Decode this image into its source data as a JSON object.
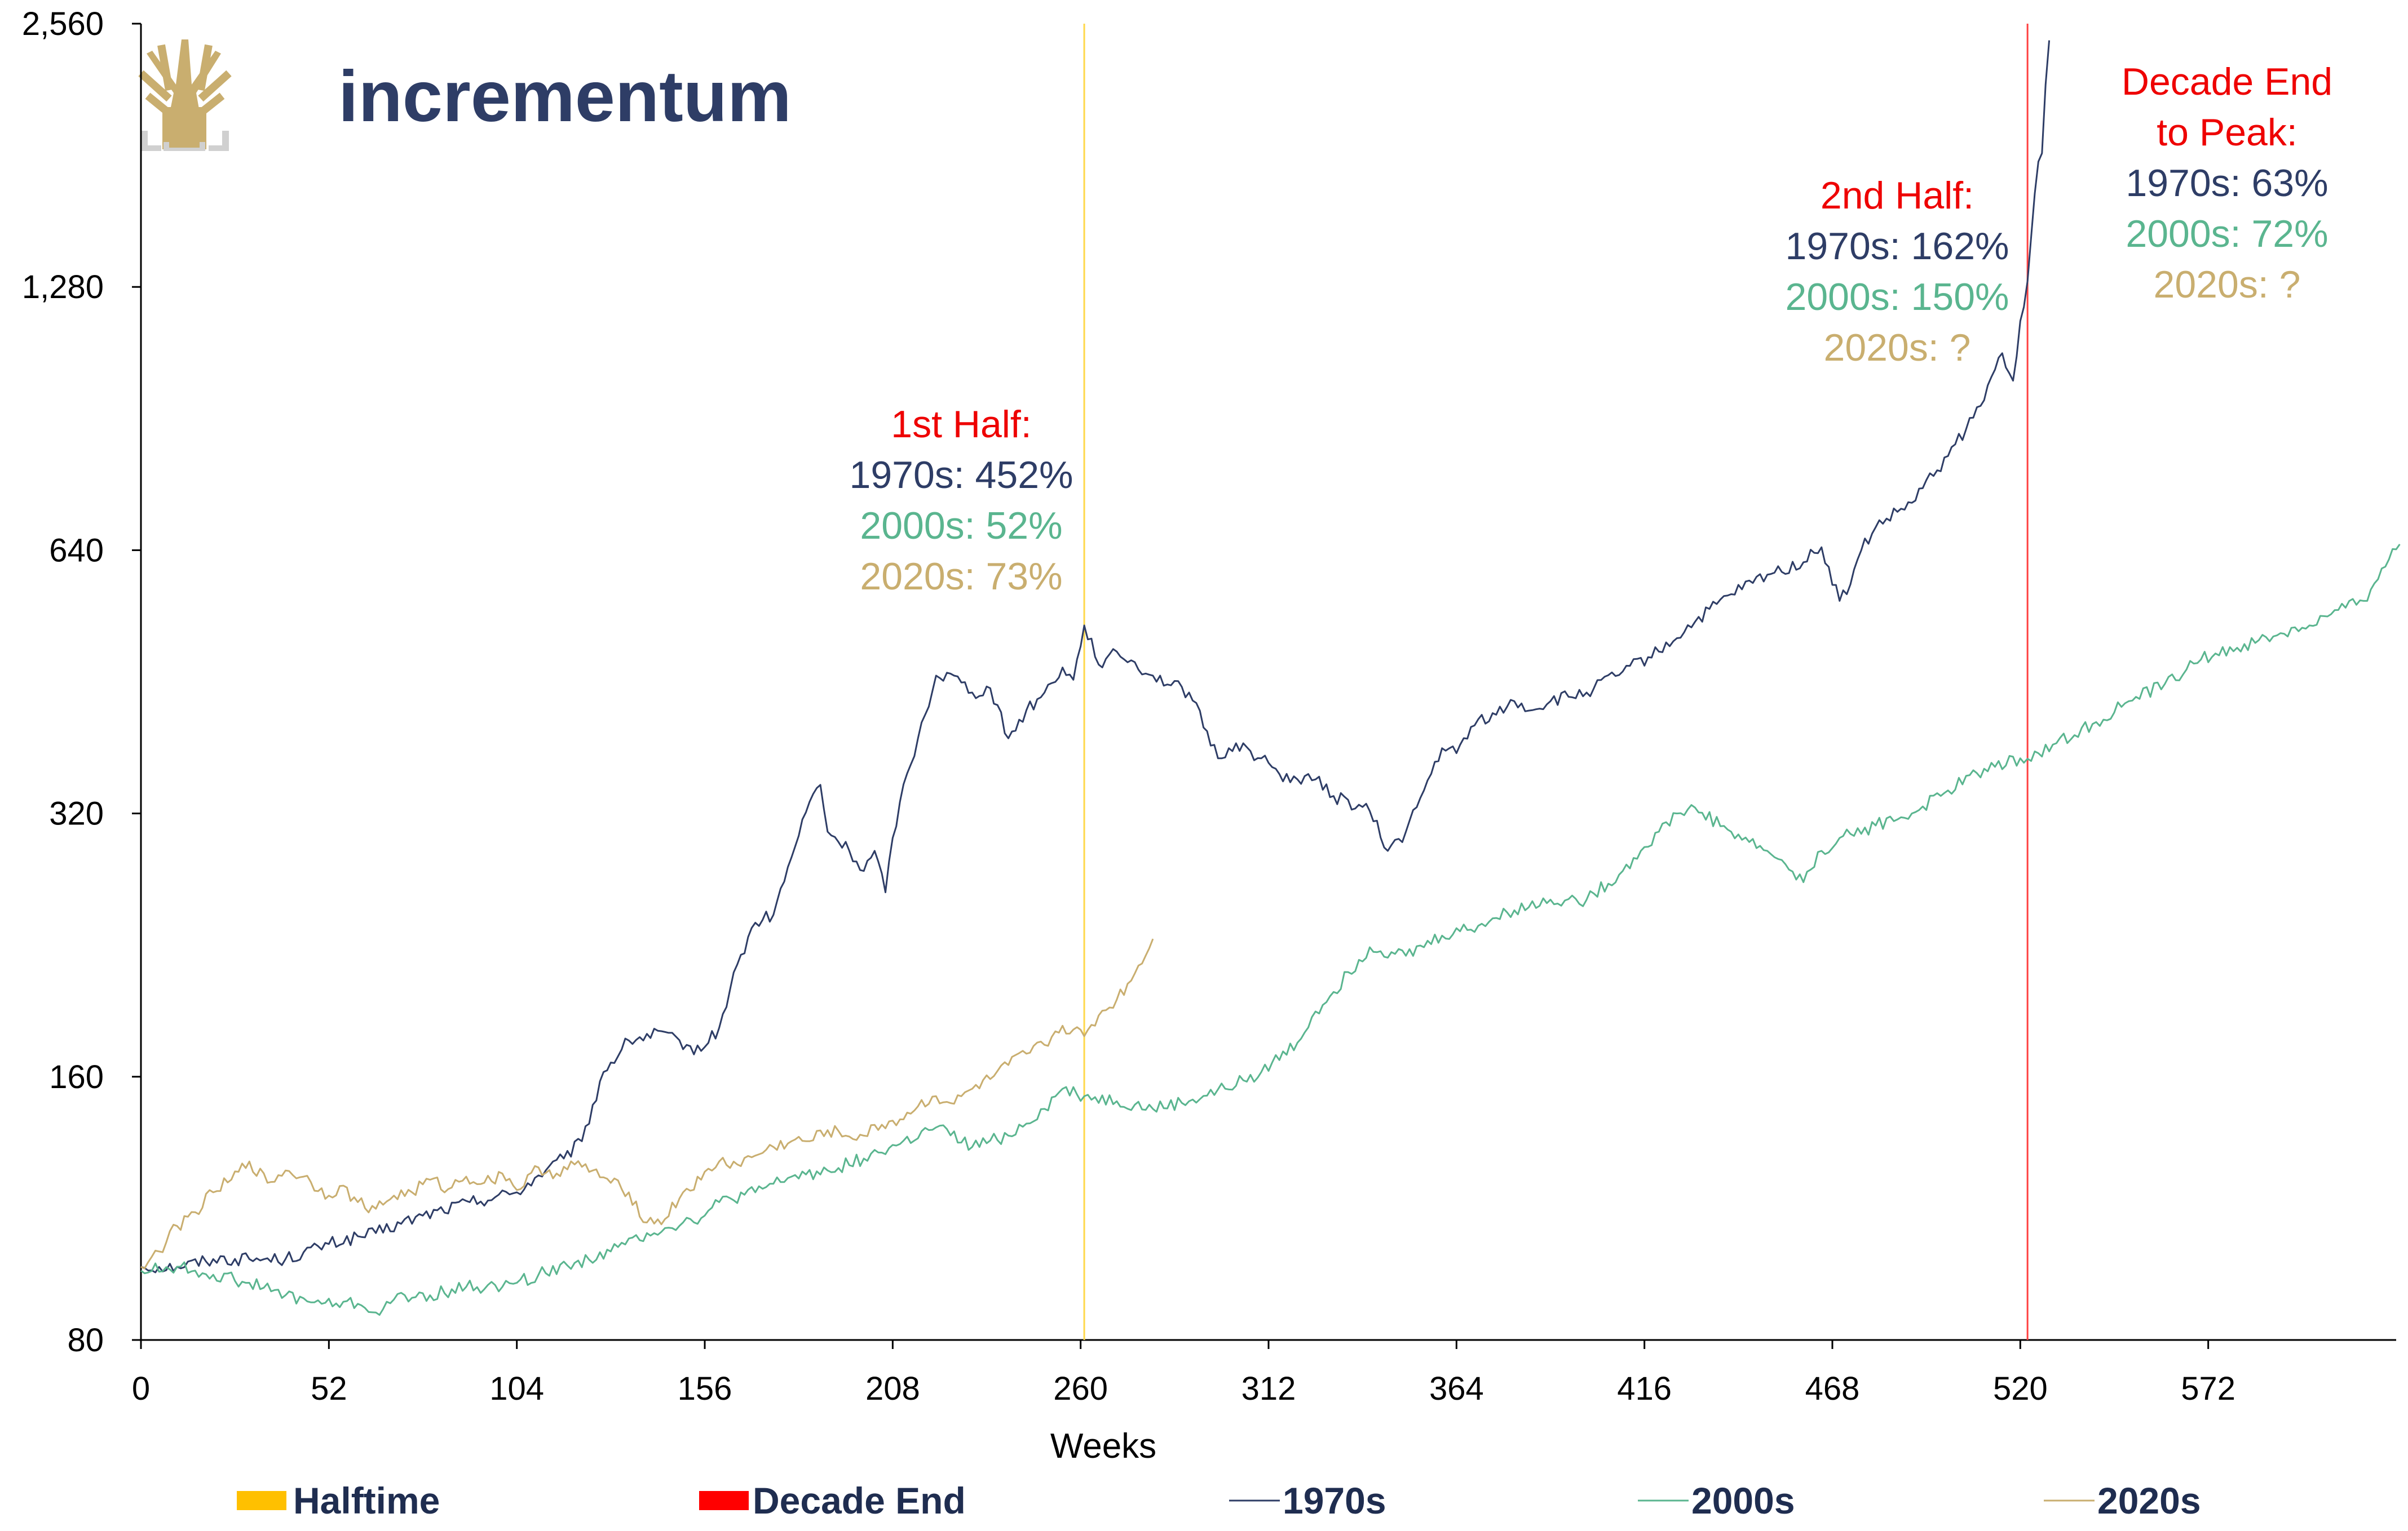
{
  "brand": {
    "name": "incrementum",
    "color": "#2e3d66",
    "logo_color": "#c9ae6f"
  },
  "chart_data": {
    "type": "line",
    "xlabel": "Weeks",
    "ylabel": "",
    "xlim": [
      0,
      624
    ],
    "ylim": [
      80,
      2560
    ],
    "y_scale": "log2",
    "xticks": [
      0,
      52,
      104,
      156,
      208,
      260,
      312,
      364,
      416,
      468,
      520,
      572
    ],
    "yticks": [
      80,
      160,
      320,
      640,
      1280,
      2560
    ],
    "ytick_labels": [
      "80",
      "160",
      "320",
      "640",
      "1,280",
      "2,560"
    ],
    "grid": false,
    "legend_position": "bottom",
    "legend": [
      {
        "label": "Halftime",
        "kind": "box",
        "color": "#ffc000"
      },
      {
        "label": "Decade End",
        "kind": "box",
        "color": "#ff0000"
      },
      {
        "label": "1970s",
        "kind": "line",
        "color": "#2e3d66"
      },
      {
        "label": "2000s",
        "kind": "line",
        "color": "#5ab58f"
      },
      {
        "label": "2020s",
        "kind": "line",
        "color": "#c9ae6f"
      }
    ],
    "vlines": [
      {
        "name": "Halftime",
        "x": 261,
        "color": "#ffd84a"
      },
      {
        "name": "Decade End",
        "x": 522,
        "color": "#ff4040"
      }
    ],
    "series": [
      {
        "name": "1970s",
        "color": "#2e3d66",
        "x": [
          0,
          10,
          20,
          30,
          40,
          52,
          65,
          78,
          91,
          104,
          112,
          117,
          122,
          128,
          135,
          145,
          150,
          156,
          160,
          165,
          170,
          175,
          180,
          185,
          188,
          190,
          196,
          200,
          203,
          206,
          208,
          210,
          215,
          220,
          225,
          230,
          235,
          240,
          245,
          250,
          255,
          258,
          261,
          266,
          270,
          280,
          290,
          298,
          303,
          310,
          315,
          320,
          325,
          330,
          340,
          345,
          350,
          355,
          360,
          364,
          370,
          375,
          380,
          385,
          390,
          400,
          410,
          420,
          430,
          440,
          450,
          460,
          465,
          470,
          473,
          476,
          480,
          490,
          500,
          505,
          510,
          512,
          515,
          518,
          520,
          522,
          523,
          525,
          526,
          527,
          528
        ],
        "y": [
          97,
          97,
          99,
          99,
          99,
          103,
          106,
          111,
          115,
          118,
          125,
          129,
          135,
          162,
          176,
          180,
          172,
          173,
          182,
          215,
          240,
          245,
          285,
          330,
          345,
          305,
          290,
          275,
          290,
          260,
          300,
          330,
          390,
          460,
          460,
          440,
          445,
          390,
          420,
          440,
          470,
          455,
          525,
          470,
          490,
          460,
          440,
          370,
          385,
          370,
          355,
          350,
          350,
          335,
          322,
          290,
          305,
          340,
          380,
          375,
          410,
          415,
          430,
          420,
          430,
          440,
          465,
          490,
          530,
          570,
          600,
          620,
          645,
          560,
          585,
          640,
          680,
          725,
          820,
          880,
          950,
          1010,
          1075,
          1000,
          1170,
          1300,
          1460,
          1780,
          1820,
          2180,
          2450
        ]
      },
      {
        "name": "2000s",
        "color": "#5ab58f",
        "x": [
          0,
          10,
          20,
          30,
          40,
          50,
          60,
          65,
          70,
          80,
          90,
          100,
          110,
          120,
          130,
          140,
          150,
          156,
          160,
          170,
          180,
          190,
          200,
          210,
          220,
          230,
          240,
          250,
          255,
          261,
          270,
          280,
          290,
          300,
          310,
          320,
          325,
          330,
          340,
          350,
          360,
          370,
          380,
          390,
          400,
          410,
          415,
          420,
          425,
          430,
          440,
          450,
          455,
          460,
          465,
          470,
          480,
          490,
          500,
          510,
          520,
          525,
          530,
          540,
          550,
          560,
          570,
          580,
          590,
          600,
          610,
          615,
          620,
          625
        ],
        "y": [
          96,
          97,
          95,
          93,
          90,
          88,
          88,
          86,
          89,
          90,
          92,
          92,
          95,
          98,
          101,
          106,
          109,
          111,
          115,
          118,
          123,
          125,
          129,
          134,
          140,
          133,
          137,
          147,
          155,
          152,
          150,
          147,
          150,
          155,
          162,
          175,
          190,
          200,
          225,
          220,
          232,
          238,
          248,
          255,
          255,
          275,
          290,
          305,
          320,
          325,
          305,
          290,
          280,
          267,
          290,
          300,
          310,
          320,
          340,
          360,
          370,
          375,
          385,
          405,
          430,
          450,
          480,
          495,
          510,
          525,
          550,
          560,
          610,
          650
        ]
      },
      {
        "name": "2020s",
        "color": "#c9ae6f",
        "x": [
          0,
          5,
          10,
          15,
          20,
          25,
          30,
          35,
          40,
          45,
          52,
          55,
          60,
          65,
          70,
          75,
          80,
          85,
          90,
          95,
          100,
          105,
          110,
          115,
          120,
          125,
          130,
          135,
          140,
          145,
          150,
          155,
          160,
          165,
          170,
          175,
          180,
          185,
          190,
          195,
          200,
          205,
          210,
          215,
          220,
          225,
          230,
          235,
          240,
          245,
          250,
          255,
          261,
          265,
          270,
          275,
          280
        ],
        "y": [
          97,
          101,
          108,
          112,
          118,
          122,
          128,
          121,
          125,
          123,
          117,
          120,
          115,
          113,
          117,
          118,
          122,
          119,
          123,
          121,
          124,
          119,
          126,
          124,
          127,
          125,
          121,
          118,
          109,
          110,
          118,
          122,
          128,
          127,
          130,
          133,
          135,
          135,
          139,
          137,
          137,
          141,
          143,
          148,
          152,
          149,
          155,
          159,
          165,
          170,
          174,
          183,
          178,
          188,
          196,
          210,
          230
        ]
      }
    ]
  },
  "annotations": [
    {
      "id": "first-half",
      "lines": [
        {
          "text": "1st Half:",
          "color": "#ee0000"
        },
        {
          "text": "1970s: 452%",
          "color": "#2e3d66"
        },
        {
          "text": "2000s: 52%",
          "color": "#5ab58f"
        },
        {
          "text": "2020s: 73%",
          "color": "#c9ae6f"
        }
      ]
    },
    {
      "id": "second-half",
      "lines": [
        {
          "text": "2nd Half:",
          "color": "#ee0000"
        },
        {
          "text": "1970s: 162%",
          "color": "#2e3d66"
        },
        {
          "text": "2000s: 150%",
          "color": "#5ab58f"
        },
        {
          "text": "2020s: ?",
          "color": "#c9ae6f"
        }
      ]
    },
    {
      "id": "decade-end-to-peak",
      "lines": [
        {
          "text": "Decade End",
          "color": "#ee0000"
        },
        {
          "text": "to Peak:",
          "color": "#ee0000"
        },
        {
          "text": "1970s: 63%",
          "color": "#2e3d66"
        },
        {
          "text": "2000s: 72%",
          "color": "#5ab58f"
        },
        {
          "text": "2020s: ?",
          "color": "#c9ae6f"
        }
      ]
    }
  ]
}
